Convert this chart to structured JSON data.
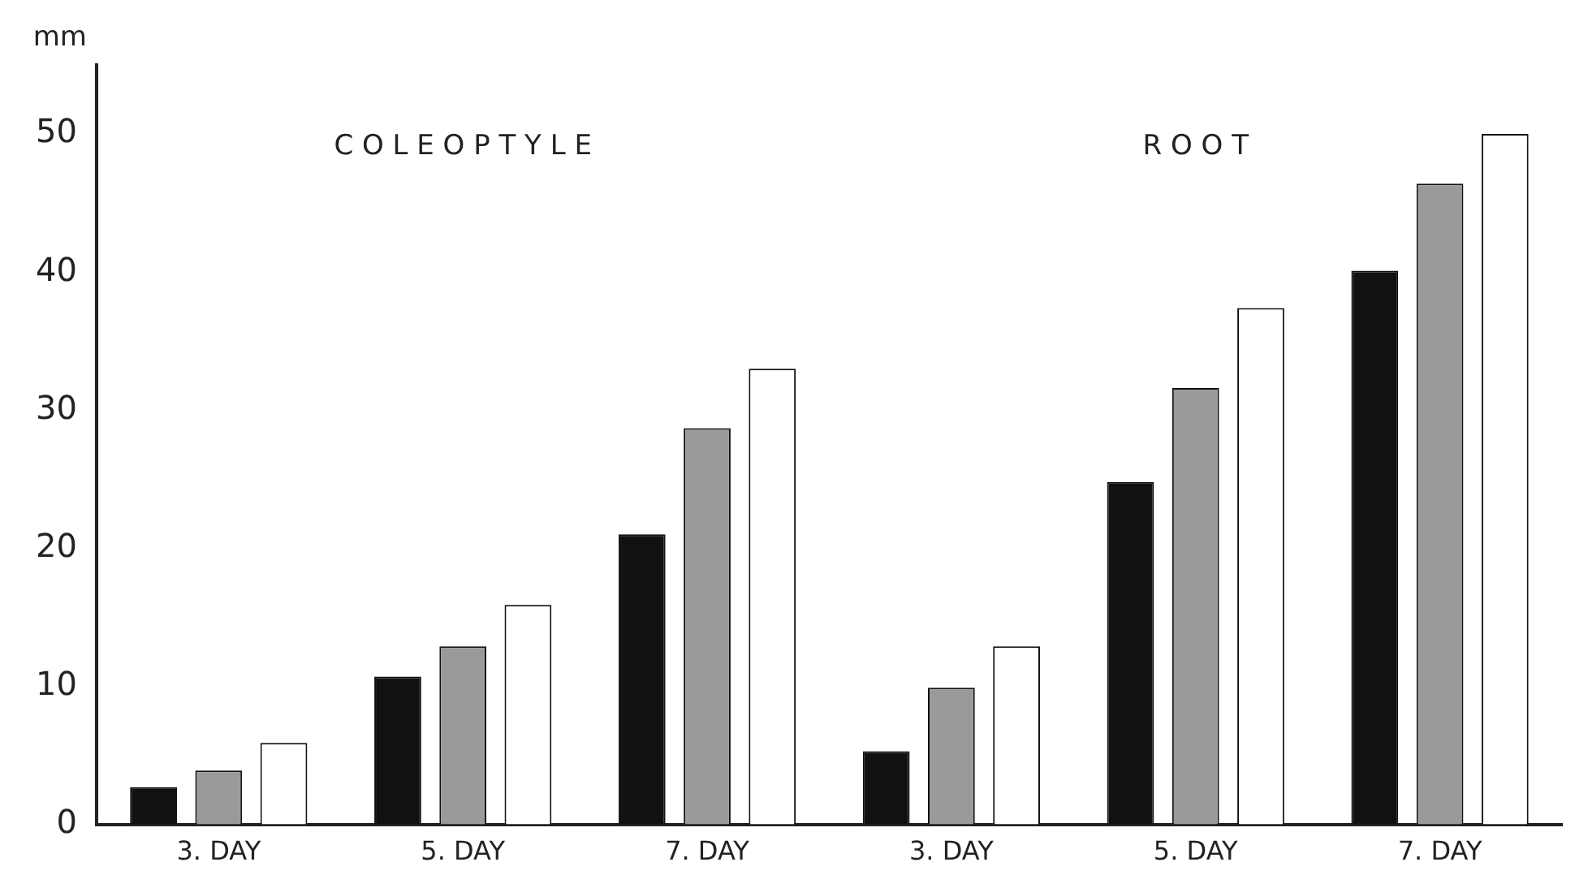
{
  "chart_data": {
    "type": "bar",
    "ylabel": "mm",
    "annotations": [
      "C O L E O P T Y L E",
      "R O O T"
    ],
    "categories": [
      "3. DAY",
      "5. DAY",
      "7. DAY",
      "3. DAY",
      "5. DAY",
      "7. DAY"
    ],
    "series": [
      {
        "color": "#111111",
        "values": [
          2.7,
          10.7,
          21,
          5.3,
          24.8,
          40.1
        ]
      },
      {
        "color": "#9a9a9a",
        "values": [
          3.9,
          12.9,
          28.7,
          9.9,
          31.6,
          46.4
        ]
      },
      {
        "color": "#ffffff",
        "values": [
          5.9,
          15.9,
          33,
          12.9,
          37.4,
          50
        ]
      }
    ],
    "ylim": [
      0,
      55
    ],
    "yticks": [
      0,
      10,
      20,
      30,
      40,
      50
    ],
    "grid": false,
    "legend": false
  }
}
